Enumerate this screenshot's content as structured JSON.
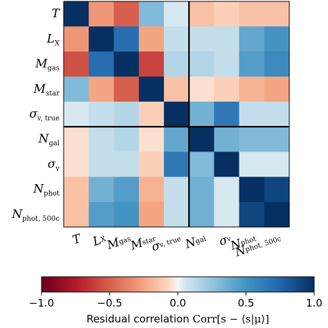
{
  "chart_data": {
    "type": "heatmap",
    "variables": [
      {
        "base": "T",
        "sub": ""
      },
      {
        "base": "L",
        "sub": "X"
      },
      {
        "base": "M",
        "sub": "gas"
      },
      {
        "base": "M",
        "sub": "star"
      },
      {
        "base": "σ",
        "sub": "v, true"
      },
      {
        "base": "N",
        "sub": "gal"
      },
      {
        "base": "σ",
        "sub": "v"
      },
      {
        "base": "N",
        "sub": "phot"
      },
      {
        "base": "N",
        "sub": "phot, 500c"
      }
    ],
    "matrix": [
      [
        1.0,
        -0.3,
        -0.5,
        0.3,
        0.05,
        -0.15,
        -0.1,
        -0.15,
        -0.15
      ],
      [
        -0.3,
        1.0,
        0.7,
        -0.25,
        0.1,
        0.1,
        0.1,
        0.4,
        0.5
      ],
      [
        -0.55,
        0.7,
        1.0,
        -0.6,
        0.15,
        0.15,
        0.1,
        0.45,
        0.55
      ],
      [
        0.3,
        -0.25,
        -0.5,
        1.0,
        -0.15,
        -0.05,
        -0.1,
        -0.2,
        -0.25
      ],
      [
        0.05,
        0.1,
        0.15,
        -0.1,
        1.0,
        0.35,
        0.65,
        0.1,
        0.1
      ],
      [
        -0.05,
        0.1,
        0.15,
        -0.05,
        0.4,
        1.0,
        0.35,
        0.3,
        0.3
      ],
      [
        -0.05,
        0.1,
        0.1,
        -0.1,
        0.65,
        0.3,
        1.0,
        0.05,
        0.05
      ],
      [
        -0.15,
        0.35,
        0.45,
        -0.2,
        0.1,
        0.35,
        0.05,
        1.0,
        0.9
      ],
      [
        -0.15,
        0.45,
        0.5,
        -0.25,
        0.1,
        0.35,
        0.05,
        0.9,
        1.0
      ]
    ],
    "block_divider_after_index": 4,
    "colorbar": {
      "min": -1.0,
      "max": 1.0,
      "ticks": [
        "−1.0",
        "−0.5",
        "0.0",
        "0.5",
        "1.0"
      ],
      "label_text": "Residual correlation",
      "label_math": "Corr[s − ⟨s|μ⟩]"
    },
    "colormap": {
      "negative_end": "#67001f",
      "mid_negative": "#f4a582",
      "center": "#f7f7f7",
      "mid_positive": "#92c5de",
      "positive_end": "#053061"
    }
  }
}
